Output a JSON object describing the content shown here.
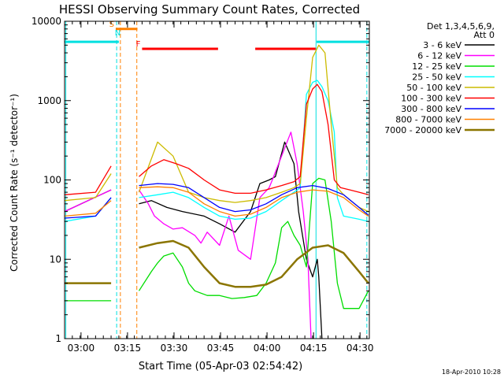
{
  "chart_data": {
    "type": "line",
    "title": "HESSI Observing Summary Count Rates, Corrected",
    "xlabel": "Start Time (05-Apr-03 02:54:42)",
    "ylabel": "Corrected Count Rate (s⁻¹ detector⁻¹)",
    "y_scale": "log",
    "ylim": [
      1,
      10000
    ],
    "xlim_minutes_after_start": [
      0,
      98.3
    ],
    "x_ticks": [
      {
        "label": "03:00",
        "t": 5.3
      },
      {
        "label": "03:15",
        "t": 20.3
      },
      {
        "label": "03:30",
        "t": 35.3
      },
      {
        "label": "03:45",
        "t": 50.3
      },
      {
        "label": "04:00",
        "t": 65.3
      },
      {
        "label": "04:15",
        "t": 80.3
      },
      {
        "label": "04:30",
        "t": 95.3
      }
    ],
    "y_ticks": [
      {
        "label": "1",
        "v": 1
      },
      {
        "label": "10",
        "v": 10
      },
      {
        "label": "100",
        "v": 100
      },
      {
        "label": "1000",
        "v": 1000
      },
      {
        "label": "10000",
        "v": 10000
      }
    ],
    "legend_title": [
      "Det 1,3,4,5,6,9,",
      "Att 0"
    ],
    "legend_position": "right",
    "series": [
      {
        "name": "3 - 6 keV",
        "color": "#000000",
        "x": [
          0,
          15,
          15.1,
          24,
          28,
          33,
          38,
          45,
          50,
          55,
          60,
          63,
          66,
          68,
          71,
          74,
          75.5,
          78,
          80,
          81.5,
          82,
          83
        ],
        "y": [
          40,
          75,
          null,
          50,
          55,
          45,
          40,
          35,
          28,
          22,
          40,
          90,
          100,
          110,
          300,
          160,
          40,
          10,
          6,
          10,
          6,
          1
        ]
      },
      {
        "name": "6 - 12 keV",
        "color": "#ff00ff",
        "x": [
          0,
          15,
          15.1,
          24,
          27,
          29,
          32,
          35,
          38,
          42,
          44,
          46,
          50,
          53,
          56,
          60,
          63,
          66,
          67,
          70,
          73,
          75,
          77,
          78.5,
          79.5
        ],
        "y": [
          40,
          75,
          null,
          75,
          50,
          35,
          28,
          24,
          25,
          20,
          16,
          22,
          15,
          35,
          13,
          10,
          60,
          80,
          100,
          200,
          400,
          160,
          40,
          10,
          1
        ]
      },
      {
        "name": "12 - 25 keV",
        "color": "#00dd00",
        "x": [
          0,
          15,
          15.1,
          24,
          28,
          30,
          32,
          35,
          38,
          40,
          42,
          46,
          50,
          54,
          58,
          62,
          65,
          68,
          70,
          72,
          74,
          76,
          78,
          80,
          82,
          84,
          86,
          88,
          90,
          92,
          95,
          98
        ],
        "y": [
          3,
          3,
          null,
          4,
          7,
          9,
          11,
          12,
          8,
          5,
          4,
          3.5,
          3.5,
          3.2,
          3.3,
          3.5,
          5,
          9,
          25,
          30,
          20,
          15,
          8,
          90,
          105,
          100,
          30,
          5,
          2.4,
          2.4,
          2.4,
          4
        ]
      },
      {
        "name": "25 - 50 keV",
        "color": "#00ffff",
        "x": [
          0,
          10,
          15,
          15.1,
          24,
          30,
          35,
          40,
          45,
          50,
          55,
          60,
          65,
          70,
          74,
          76,
          78,
          80,
          81.5,
          83,
          85,
          87,
          88,
          90,
          95,
          98
        ],
        "y": [
          30,
          35,
          60,
          null,
          60,
          65,
          70,
          60,
          45,
          35,
          32,
          33,
          40,
          55,
          70,
          80,
          1200,
          1700,
          1800,
          1500,
          1000,
          400,
          60,
          35,
          32,
          30
        ]
      },
      {
        "name": "50 - 100 keV",
        "color": "#ccbb00",
        "x": [
          0,
          10,
          15,
          15.1,
          24,
          30,
          35,
          40,
          45,
          50,
          55,
          60,
          65,
          70,
          74,
          76,
          78,
          80,
          82,
          84,
          86,
          88,
          90,
          95,
          98
        ],
        "y": [
          55,
          60,
          120,
          null,
          70,
          300,
          200,
          70,
          60,
          55,
          52,
          55,
          60,
          70,
          80,
          90,
          600,
          3500,
          5000,
          4000,
          500,
          80,
          65,
          45,
          40
        ]
      },
      {
        "name": "100 - 300 keV",
        "color": "#ff0000",
        "x": [
          0,
          10,
          15,
          15.1,
          24,
          28,
          32,
          36,
          40,
          45,
          50,
          55,
          60,
          65,
          70,
          74,
          76,
          78,
          80,
          81.5,
          83,
          85,
          87,
          89,
          92,
          95,
          98
        ],
        "y": [
          65,
          70,
          150,
          null,
          110,
          150,
          180,
          160,
          140,
          100,
          75,
          68,
          68,
          75,
          85,
          95,
          110,
          900,
          1400,
          1600,
          1300,
          500,
          100,
          80,
          75,
          70,
          65
        ]
      },
      {
        "name": "300 - 800 keV",
        "color": "#0000ff",
        "x": [
          0,
          10,
          15,
          15.1,
          24,
          30,
          35,
          40,
          45,
          50,
          55,
          60,
          65,
          70,
          75,
          80,
          85,
          90,
          95,
          98
        ],
        "y": [
          33,
          35,
          60,
          null,
          85,
          90,
          88,
          80,
          60,
          45,
          40,
          42,
          50,
          65,
          80,
          85,
          78,
          65,
          45,
          36
        ]
      },
      {
        "name": "800 - 7000 keV",
        "color": "#ff8000",
        "x": [
          0,
          10,
          15,
          15.1,
          24,
          30,
          35,
          40,
          45,
          50,
          55,
          60,
          65,
          70,
          75,
          80,
          85,
          90,
          95,
          98
        ],
        "y": [
          35,
          38,
          55,
          null,
          80,
          82,
          80,
          70,
          50,
          40,
          35,
          37,
          45,
          60,
          70,
          75,
          72,
          60,
          42,
          35
        ]
      },
      {
        "name": "7000 - 20000 keV",
        "color": "#8b7500",
        "x": [
          0,
          5,
          10,
          15,
          15.1,
          24,
          30,
          35,
          40,
          45,
          50,
          55,
          60,
          65,
          70,
          75,
          80,
          85,
          90,
          95,
          98
        ],
        "y": [
          5,
          5,
          5,
          5,
          null,
          14,
          16,
          17,
          14,
          8,
          5,
          4.5,
          4.5,
          4.8,
          6,
          10,
          14,
          15,
          12,
          7,
          5
        ]
      }
    ],
    "state_bars": [
      {
        "label": "",
        "color": "#00e0e0",
        "x": [
          0,
          17.5
        ],
        "y": 5500
      },
      {
        "label": "",
        "color": "#00e0e0",
        "x": [
          81.3,
          98.3
        ],
        "y": 5500
      },
      {
        "label": "S",
        "color": "#ff8000",
        "x": [
          16.5,
          23.5
        ],
        "y": 8000
      },
      {
        "label": "N",
        "color": "#00e0e0",
        "x": [
          18.6,
          18.6
        ],
        "y": 6200
      },
      {
        "label": "F",
        "color": "#ff0000",
        "x": [
          25,
          49.5
        ],
        "y": 4500
      },
      {
        "label": "",
        "color": "#ff0000",
        "x": [
          61.5,
          81
        ],
        "y": 4500
      }
    ],
    "vlines": [
      {
        "color": "#00e0e0",
        "t": 0.4,
        "style": "solid"
      },
      {
        "color": "#00e0e0",
        "t": 16.8,
        "style": "dashed"
      },
      {
        "color": "#ff8000",
        "t": 18.0,
        "style": "dashed"
      },
      {
        "color": "#ff8000",
        "t": 23.3,
        "style": "dashed"
      },
      {
        "color": "#00e0e0",
        "t": 81.1,
        "style": "solid"
      },
      {
        "color": "#00e0e0",
        "t": 97.5,
        "style": "dashed"
      }
    ],
    "footer_date": "18-Apr-2010 10:28"
  }
}
